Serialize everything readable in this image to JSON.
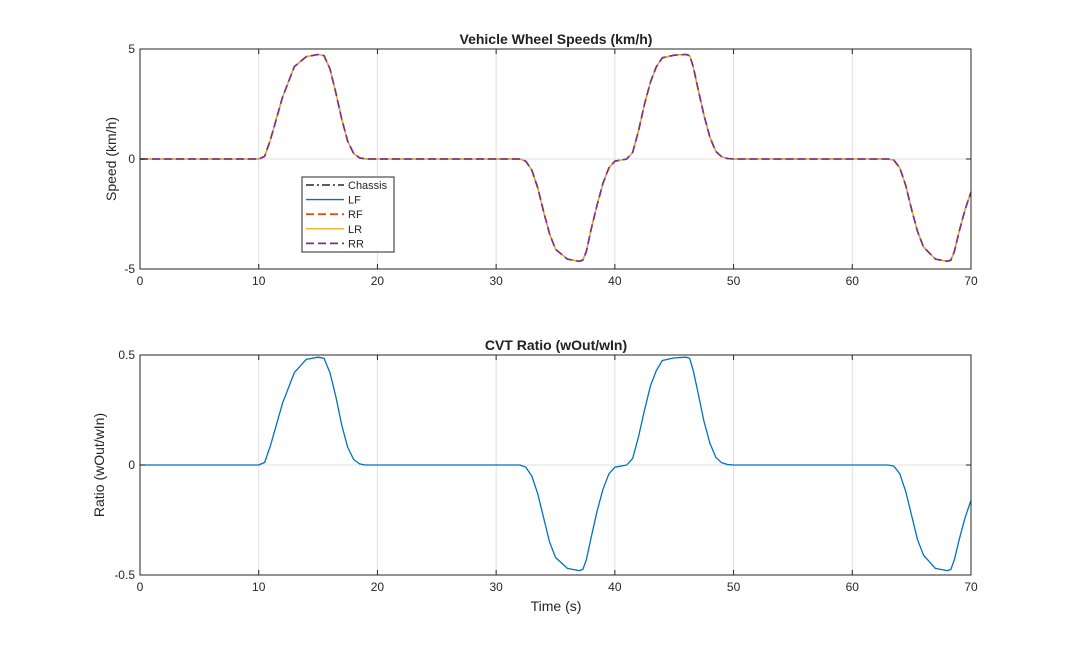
{
  "chart_data": [
    {
      "type": "line",
      "title": "Vehicle Wheel Speeds (km/h)",
      "xlabel": "",
      "ylabel": "Speed (km/h)",
      "xlim": [
        0,
        70
      ],
      "ylim": [
        -5,
        5
      ],
      "xticks": [
        0,
        10,
        20,
        30,
        40,
        50,
        60,
        70
      ],
      "yticks": [
        -5,
        0,
        5
      ],
      "grid": true,
      "legend_position": "lower-left inside",
      "series": [
        {
          "name": "Chassis",
          "color": "#262626",
          "dash": "dashdot",
          "x": [
            0,
            10,
            10.5,
            11,
            12,
            13,
            14,
            15,
            15.5,
            16,
            16.5,
            17,
            17.5,
            18,
            18.5,
            19,
            20,
            25,
            30,
            32,
            32.5,
            33,
            33.5,
            34,
            34.5,
            35,
            36,
            37,
            37.3,
            37.6,
            38,
            38.5,
            39,
            39.5,
            40,
            40.5,
            41,
            41.5,
            42,
            42.5,
            43,
            43.5,
            44,
            45,
            46,
            46.3,
            46.6,
            47,
            47.5,
            48,
            48.5,
            49,
            49.5,
            50,
            55,
            60,
            63,
            63.5,
            64,
            64.5,
            65,
            65.5,
            66,
            67,
            68,
            68.3,
            68.6,
            69,
            69.5,
            70
          ],
          "y": [
            0,
            0,
            0.12,
            0.9,
            2.8,
            4.2,
            4.65,
            4.75,
            4.7,
            4.1,
            3.0,
            1.8,
            0.8,
            0.25,
            0.05,
            0,
            0,
            0,
            0,
            0,
            -0.1,
            -0.5,
            -1.3,
            -2.4,
            -3.4,
            -4.1,
            -4.55,
            -4.65,
            -4.6,
            -4.2,
            -3.2,
            -2.1,
            -1.1,
            -0.4,
            -0.1,
            -0.05,
            0,
            0.3,
            1.3,
            2.5,
            3.5,
            4.2,
            4.6,
            4.72,
            4.75,
            4.7,
            4.2,
            3.2,
            2.0,
            1.0,
            0.35,
            0.1,
            0.02,
            0,
            0,
            0,
            0,
            -0.05,
            -0.4,
            -1.2,
            -2.3,
            -3.3,
            -4.0,
            -4.55,
            -4.65,
            -4.6,
            -4.2,
            -3.3,
            -2.3,
            -1.5
          ]
        },
        {
          "name": "LF",
          "color": "#0072BD",
          "dash": "solid",
          "x": [
            0,
            10,
            10.5,
            11,
            12,
            13,
            14,
            15,
            15.5,
            16,
            16.5,
            17,
            17.5,
            18,
            18.5,
            19,
            20,
            25,
            30,
            32,
            32.5,
            33,
            33.5,
            34,
            34.5,
            35,
            36,
            37,
            37.3,
            37.6,
            38,
            38.5,
            39,
            39.5,
            40,
            40.5,
            41,
            41.5,
            42,
            42.5,
            43,
            43.5,
            44,
            45,
            46,
            46.3,
            46.6,
            47,
            47.5,
            48,
            48.5,
            49,
            49.5,
            50,
            55,
            60,
            63,
            63.5,
            64,
            64.5,
            65,
            65.5,
            66,
            67,
            68,
            68.3,
            68.6,
            69,
            69.5,
            70
          ],
          "y": [
            0,
            0,
            0.12,
            0.9,
            2.8,
            4.2,
            4.65,
            4.75,
            4.7,
            4.1,
            3.0,
            1.8,
            0.8,
            0.25,
            0.05,
            0,
            0,
            0,
            0,
            0,
            -0.1,
            -0.5,
            -1.3,
            -2.4,
            -3.4,
            -4.1,
            -4.55,
            -4.65,
            -4.6,
            -4.2,
            -3.2,
            -2.1,
            -1.1,
            -0.4,
            -0.1,
            -0.05,
            0,
            0.3,
            1.3,
            2.5,
            3.5,
            4.2,
            4.6,
            4.72,
            4.75,
            4.7,
            4.2,
            3.2,
            2.0,
            1.0,
            0.35,
            0.1,
            0.02,
            0,
            0,
            0,
            0,
            -0.05,
            -0.4,
            -1.2,
            -2.3,
            -3.3,
            -4.0,
            -4.55,
            -4.65,
            -4.6,
            -4.2,
            -3.3,
            -2.3,
            -1.5
          ]
        },
        {
          "name": "RF",
          "color": "#D95319",
          "dash": "dashed",
          "x": [
            0,
            10,
            10.5,
            11,
            12,
            13,
            14,
            15,
            15.5,
            16,
            16.5,
            17,
            17.5,
            18,
            18.5,
            19,
            20,
            25,
            30,
            32,
            32.5,
            33,
            33.5,
            34,
            34.5,
            35,
            36,
            37,
            37.3,
            37.6,
            38,
            38.5,
            39,
            39.5,
            40,
            40.5,
            41,
            41.5,
            42,
            42.5,
            43,
            43.5,
            44,
            45,
            46,
            46.3,
            46.6,
            47,
            47.5,
            48,
            48.5,
            49,
            49.5,
            50,
            55,
            60,
            63,
            63.5,
            64,
            64.5,
            65,
            65.5,
            66,
            67,
            68,
            68.3,
            68.6,
            69,
            69.5,
            70
          ],
          "y": [
            0,
            0,
            0.12,
            0.9,
            2.8,
            4.2,
            4.65,
            4.75,
            4.7,
            4.1,
            3.0,
            1.8,
            0.8,
            0.25,
            0.05,
            0,
            0,
            0,
            0,
            0,
            -0.1,
            -0.5,
            -1.3,
            -2.4,
            -3.4,
            -4.1,
            -4.55,
            -4.65,
            -4.6,
            -4.2,
            -3.2,
            -2.1,
            -1.1,
            -0.4,
            -0.1,
            -0.05,
            0,
            0.3,
            1.3,
            2.5,
            3.5,
            4.2,
            4.6,
            4.72,
            4.75,
            4.7,
            4.2,
            3.2,
            2.0,
            1.0,
            0.35,
            0.1,
            0.02,
            0,
            0,
            0,
            0,
            -0.05,
            -0.4,
            -1.2,
            -2.3,
            -3.3,
            -4.0,
            -4.55,
            -4.65,
            -4.6,
            -4.2,
            -3.3,
            -2.3,
            -1.5
          ]
        },
        {
          "name": "LR",
          "color": "#EDB120",
          "dash": "solid",
          "x": [
            0,
            10,
            10.5,
            11,
            12,
            13,
            14,
            15,
            15.5,
            16,
            16.5,
            17,
            17.5,
            18,
            18.5,
            19,
            20,
            25,
            30,
            32,
            32.5,
            33,
            33.5,
            34,
            34.5,
            35,
            36,
            37,
            37.3,
            37.6,
            38,
            38.5,
            39,
            39.5,
            40,
            40.5,
            41,
            41.5,
            42,
            42.5,
            43,
            43.5,
            44,
            45,
            46,
            46.3,
            46.6,
            47,
            47.5,
            48,
            48.5,
            49,
            49.5,
            50,
            55,
            60,
            63,
            63.5,
            64,
            64.5,
            65,
            65.5,
            66,
            67,
            68,
            68.3,
            68.6,
            69,
            69.5,
            70
          ],
          "y": [
            0,
            0,
            0.12,
            0.9,
            2.8,
            4.2,
            4.65,
            4.75,
            4.7,
            4.1,
            3.0,
            1.8,
            0.8,
            0.25,
            0.05,
            0,
            0,
            0,
            0,
            0,
            -0.1,
            -0.5,
            -1.3,
            -2.4,
            -3.4,
            -4.1,
            -4.55,
            -4.65,
            -4.6,
            -4.2,
            -3.2,
            -2.1,
            -1.1,
            -0.4,
            -0.1,
            -0.05,
            0,
            0.3,
            1.3,
            2.5,
            3.5,
            4.2,
            4.6,
            4.72,
            4.75,
            4.7,
            4.2,
            3.2,
            2.0,
            1.0,
            0.35,
            0.1,
            0.02,
            0,
            0,
            0,
            0,
            -0.05,
            -0.4,
            -1.2,
            -2.3,
            -3.3,
            -4.0,
            -4.55,
            -4.65,
            -4.6,
            -4.2,
            -3.3,
            -2.3,
            -1.5
          ]
        },
        {
          "name": "RR",
          "color": "#7E2F8E",
          "dash": "dashed",
          "x": [
            0,
            10,
            10.5,
            11,
            12,
            13,
            14,
            15,
            15.5,
            16,
            16.5,
            17,
            17.5,
            18,
            18.5,
            19,
            20,
            25,
            30,
            32,
            32.5,
            33,
            33.5,
            34,
            34.5,
            35,
            36,
            37,
            37.3,
            37.6,
            38,
            38.5,
            39,
            39.5,
            40,
            40.5,
            41,
            41.5,
            42,
            42.5,
            43,
            43.5,
            44,
            45,
            46,
            46.3,
            46.6,
            47,
            47.5,
            48,
            48.5,
            49,
            49.5,
            50,
            55,
            60,
            63,
            63.5,
            64,
            64.5,
            65,
            65.5,
            66,
            67,
            68,
            68.3,
            68.6,
            69,
            69.5,
            70
          ],
          "y": [
            0,
            0,
            0.12,
            0.9,
            2.8,
            4.2,
            4.65,
            4.75,
            4.7,
            4.1,
            3.0,
            1.8,
            0.8,
            0.25,
            0.05,
            0,
            0,
            0,
            0,
            0,
            -0.1,
            -0.5,
            -1.3,
            -2.4,
            -3.4,
            -4.1,
            -4.55,
            -4.65,
            -4.6,
            -4.2,
            -3.2,
            -2.1,
            -1.1,
            -0.4,
            -0.1,
            -0.05,
            0,
            0.3,
            1.3,
            2.5,
            3.5,
            4.2,
            4.6,
            4.72,
            4.75,
            4.7,
            4.2,
            3.2,
            2.0,
            1.0,
            0.35,
            0.1,
            0.02,
            0,
            0,
            0,
            0,
            -0.05,
            -0.4,
            -1.2,
            -2.3,
            -3.3,
            -4.0,
            -4.55,
            -4.65,
            -4.6,
            -4.2,
            -3.3,
            -2.3,
            -1.5
          ]
        }
      ]
    },
    {
      "type": "line",
      "title": "CVT Ratio (wOut/wIn)",
      "xlabel": "Time (s)",
      "ylabel": "Ratio (wOut/wIn)",
      "xlim": [
        0,
        70
      ],
      "ylim": [
        -0.5,
        0.5
      ],
      "xticks": [
        0,
        10,
        20,
        30,
        40,
        50,
        60,
        70
      ],
      "yticks": [
        -0.5,
        0,
        0.5
      ],
      "grid": true,
      "series": [
        {
          "color": "#0072BD",
          "dash": "solid",
          "x": [
            0,
            10,
            10.5,
            11,
            12,
            13,
            14,
            15,
            15.5,
            16,
            16.5,
            17,
            17.5,
            18,
            18.5,
            19,
            20,
            25,
            30,
            32,
            32.5,
            33,
            33.5,
            34,
            34.5,
            35,
            36,
            37,
            37.3,
            37.6,
            38,
            38.5,
            39,
            39.5,
            40,
            40.5,
            41,
            41.5,
            42,
            42.5,
            43,
            43.5,
            44,
            45,
            46,
            46.3,
            46.6,
            47,
            47.5,
            48,
            48.5,
            49,
            49.5,
            50,
            55,
            60,
            63,
            63.5,
            64,
            64.5,
            65,
            65.5,
            66,
            67,
            68,
            68.3,
            68.6,
            69,
            69.5,
            70
          ],
          "y": [
            0,
            0,
            0.012,
            0.09,
            0.28,
            0.42,
            0.48,
            0.49,
            0.485,
            0.42,
            0.31,
            0.18,
            0.08,
            0.025,
            0.005,
            0,
            0,
            0,
            0,
            0,
            -0.01,
            -0.05,
            -0.13,
            -0.24,
            -0.35,
            -0.42,
            -0.47,
            -0.48,
            -0.475,
            -0.43,
            -0.33,
            -0.21,
            -0.11,
            -0.04,
            -0.01,
            -0.005,
            0,
            0.03,
            0.13,
            0.25,
            0.36,
            0.43,
            0.475,
            0.487,
            0.49,
            0.485,
            0.43,
            0.33,
            0.2,
            0.1,
            0.035,
            0.01,
            0.002,
            0,
            0,
            0,
            0,
            -0.005,
            -0.04,
            -0.12,
            -0.23,
            -0.34,
            -0.41,
            -0.47,
            -0.48,
            -0.475,
            -0.43,
            -0.34,
            -0.24,
            -0.16
          ]
        }
      ]
    }
  ]
}
